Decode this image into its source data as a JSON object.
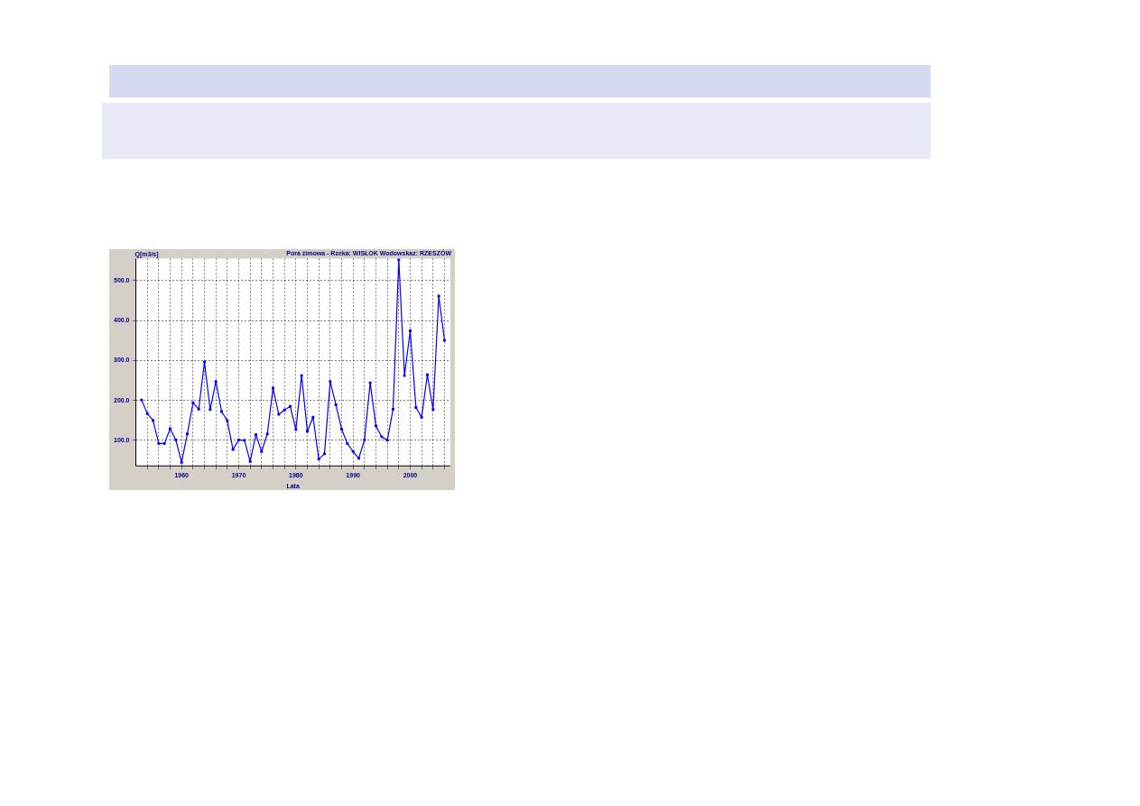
{
  "chart_data": {
    "type": "line",
    "title": "Pora zimowa - Rzeka: WISŁOK Wodowskaz: RZESZÓW",
    "xlabel": "Lata",
    "ylabel": "Q[m3/s]",
    "x": [
      1953,
      1954,
      1955,
      1956,
      1957,
      1958,
      1959,
      1960,
      1961,
      1962,
      1963,
      1964,
      1965,
      1966,
      1967,
      1968,
      1969,
      1970,
      1971,
      1972,
      1973,
      1974,
      1975,
      1976,
      1977,
      1978,
      1979,
      1980,
      1981,
      1982,
      1983,
      1984,
      1985,
      1986,
      1987,
      1988,
      1989,
      1990,
      1991,
      1992,
      1993,
      1994,
      1995,
      1996,
      1997,
      1998,
      1999,
      2000,
      2001,
      2002,
      2003,
      2004,
      2005,
      2006
    ],
    "series": [
      {
        "color": "#0000ff",
        "values": [
          201,
          167,
          150,
          92,
          92,
          129,
          101,
          45,
          116,
          194,
          178,
          296,
          177,
          247,
          172,
          149,
          77,
          101,
          100,
          47,
          114,
          72,
          116,
          231,
          165,
          176,
          185,
          127,
          262,
          123,
          158,
          53,
          66,
          247,
          189,
          128,
          92,
          72,
          55,
          101,
          244,
          136,
          109,
          100,
          178,
          552,
          262,
          374,
          182,
          158,
          264,
          177,
          461,
          350
        ]
      }
    ],
    "xlim": [
      1952,
      2007
    ],
    "xticks": [
      {
        "value": 1954,
        "label": null
      },
      {
        "value": 1956,
        "label": null
      },
      {
        "value": 1958,
        "label": null
      },
      1960,
      {
        "value": 1962,
        "label": null
      },
      {
        "value": 1964,
        "label": null
      },
      {
        "value": 1966,
        "label": null
      },
      {
        "value": 1968,
        "label": null
      },
      1970,
      {
        "value": 1972,
        "label": null
      },
      {
        "value": 1974,
        "label": null
      },
      {
        "value": 1976,
        "label": null
      },
      {
        "value": 1978,
        "label": null
      },
      1980,
      {
        "value": 1982,
        "label": null
      },
      {
        "value": 1984,
        "label": null
      },
      {
        "value": 1986,
        "label": null
      },
      {
        "value": 1988,
        "label": null
      },
      1990,
      {
        "value": 1992,
        "label": null
      },
      {
        "value": 1994,
        "label": null
      },
      {
        "value": 1996,
        "label": null
      },
      {
        "value": 1998,
        "label": null
      },
      2000,
      {
        "value": 2002,
        "label": null
      },
      {
        "value": 2004,
        "label": null
      },
      {
        "value": 2006,
        "label": null
      }
    ],
    "ylim": [
      36,
      555
    ],
    "yticks": [
      {
        "value": 100,
        "label": "100.0"
      },
      {
        "value": 200,
        "label": "200.0"
      },
      {
        "value": 300,
        "label": "300.0"
      },
      {
        "value": 400,
        "label": "400.0"
      },
      {
        "value": 500,
        "label": "500.0"
      }
    ],
    "grid": true,
    "legend": false,
    "marker": "square",
    "line_style": "solid"
  }
}
